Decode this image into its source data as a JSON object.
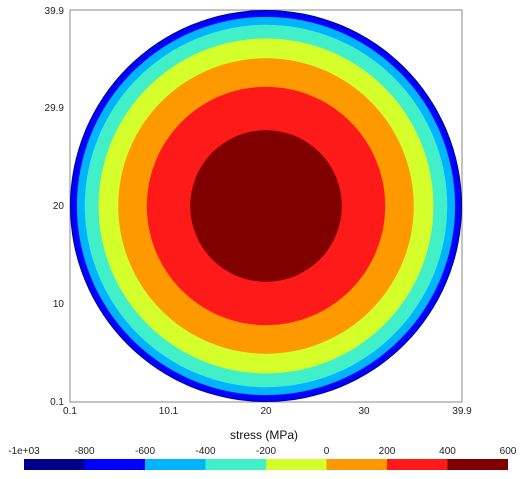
{
  "chart_data": {
    "type": "heatmap",
    "title": "",
    "xlabel": "stress (MPa)",
    "ylabel": "",
    "xlim": [
      0.1,
      39.9
    ],
    "ylim": [
      0.1,
      39.9
    ],
    "x_ticks": [
      "0.1",
      "10.1",
      "20",
      "30",
      "39.9"
    ],
    "y_ticks": [
      "0.1",
      "10",
      "20",
      "29.9",
      "39.9"
    ],
    "colorbar": {
      "ticks": [
        "-1e+03",
        "-800",
        "-600",
        "-400",
        "-200",
        "0",
        "200",
        "400",
        "600"
      ],
      "bins": [
        {
          "min": -1000,
          "max": -800,
          "color": "#00008b"
        },
        {
          "min": -800,
          "max": -600,
          "color": "#0000ff"
        },
        {
          "min": -600,
          "max": -400,
          "color": "#00b4ff"
        },
        {
          "min": -400,
          "max": -200,
          "color": "#41f0c8"
        },
        {
          "min": -200,
          "max": 0,
          "color": "#d4ff2a"
        },
        {
          "min": 0,
          "max": 200,
          "color": "#ff9900"
        },
        {
          "min": 200,
          "max": 400,
          "color": "#ff1a1a"
        },
        {
          "min": 400,
          "max": 600,
          "color": "#800000"
        }
      ]
    },
    "contour_bands": [
      {
        "lower": 400,
        "upper": 600,
        "color": "#800000",
        "radius": 7.7
      },
      {
        "lower": 200,
        "upper": 400,
        "color": "#ff1a1a",
        "radius": 12.1
      },
      {
        "lower": 0,
        "upper": 200,
        "color": "#ff9900",
        "radius": 15.0
      },
      {
        "lower": -200,
        "upper": 0,
        "color": "#d4ff2a",
        "radius": 17.0
      },
      {
        "lower": -400,
        "upper": -200,
        "color": "#41f0c8",
        "radius": 18.4
      },
      {
        "lower": -600,
        "upper": -400,
        "color": "#00b4ff",
        "radius": 19.2
      },
      {
        "lower": -800,
        "upper": -600,
        "color": "#0000ff",
        "radius": 19.8
      },
      {
        "lower": -1000,
        "upper": -800,
        "color": "#00008b",
        "radius": 19.9
      }
    ],
    "domain_center": [
      20,
      20
    ],
    "domain_radius": 19.9
  }
}
